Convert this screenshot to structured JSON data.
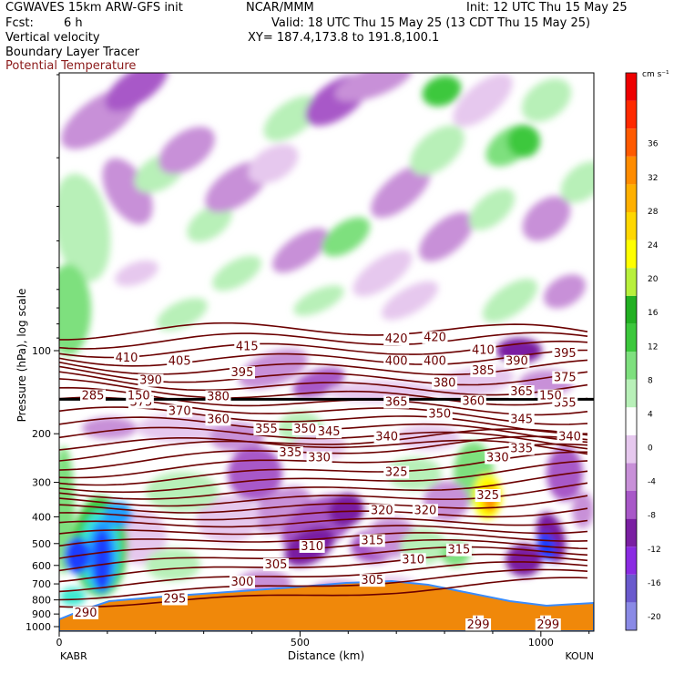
{
  "header": {
    "model": "CGWAVES 15km ARW-GFS init",
    "org": "NCAR/MMM",
    "init": "Init: 12 UTC Thu 15 May 25",
    "fcst_label": "Fcst:",
    "fcst_value": "6 h",
    "valid": "Valid: 18 UTC Thu 15 May 25 (13 CDT Thu 15 May 25)",
    "field1": "Vertical velocity",
    "xy": "XY= 187.4,173.8 to 191.8,100.1",
    "field2": "Boundary Layer Tracer",
    "field3": "Potential Temperature"
  },
  "colors": {
    "theta_contour": "#6b0000",
    "theta_label": "#8b1a1a",
    "terrain": "#f0880a",
    "tracer": "#000000"
  },
  "chart_data": {
    "type": "heatmap",
    "title": "",
    "xlabel": "Distance (km)",
    "ylabel": "Pressure (hPa), log scale",
    "xlim": [
      0,
      1110
    ],
    "ylim": [
      1000,
      10
    ],
    "y_scale": "log",
    "x_ticks": [
      0,
      500,
      1000
    ],
    "y_ticks": [
      100,
      200,
      300,
      400,
      500,
      600,
      700,
      800,
      900,
      1000
    ],
    "x_end_labels": {
      "left": "KABR",
      "right": "KOUN"
    },
    "colorbar": {
      "unit": "cm s⁻¹",
      "levels": [
        -20,
        -16,
        -12,
        -8,
        -4,
        0,
        4,
        8,
        12,
        16,
        20,
        24,
        28,
        32,
        36
      ],
      "colors": [
        "#8a8ae6",
        "#6a5acd",
        "#8a2be2",
        "#7a1fa2",
        "#a858c8",
        "#c890d8",
        "#e6c8ee",
        "#ffffff",
        "#b8f0b8",
        "#7ee07e",
        "#3cc83c",
        "#22b022",
        "#b8f03c",
        "#ffff00",
        "#ffd700",
        "#ffb000",
        "#ff8c00",
        "#ff5a00",
        "#ff2a00",
        "#ee0000"
      ]
    },
    "theta_labels": [
      {
        "x": 55,
        "p": 905,
        "text": "290"
      },
      {
        "x": 240,
        "p": 805,
        "text": "295"
      },
      {
        "x": 380,
        "p": 700,
        "text": "300"
      },
      {
        "x": 450,
        "p": 605,
        "text": "305"
      },
      {
        "x": 650,
        "p": 690,
        "text": "305"
      },
      {
        "x": 525,
        "p": 520,
        "text": "310"
      },
      {
        "x": 735,
        "p": 580,
        "text": "310"
      },
      {
        "x": 650,
        "p": 495,
        "text": "315"
      },
      {
        "x": 830,
        "p": 535,
        "text": "315"
      },
      {
        "x": 670,
        "p": 385,
        "text": "320"
      },
      {
        "x": 760,
        "p": 385,
        "text": "320"
      },
      {
        "x": 890,
        "p": 340,
        "text": "325"
      },
      {
        "x": 700,
        "p": 280,
        "text": "325"
      },
      {
        "x": 540,
        "p": 248,
        "text": "330"
      },
      {
        "x": 910,
        "p": 248,
        "text": "330"
      },
      {
        "x": 480,
        "p": 238,
        "text": "335"
      },
      {
        "x": 960,
        "p": 230,
        "text": "335"
      },
      {
        "x": 680,
        "p": 208,
        "text": "340"
      },
      {
        "x": 1060,
        "p": 208,
        "text": "340"
      },
      {
        "x": 560,
        "p": 200,
        "text": "345"
      },
      {
        "x": 960,
        "p": 180,
        "text": "345"
      },
      {
        "x": 510,
        "p": 195,
        "text": "350"
      },
      {
        "x": 790,
        "p": 172,
        "text": "350"
      },
      {
        "x": 430,
        "p": 195,
        "text": "355"
      },
      {
        "x": 1050,
        "p": 157,
        "text": "355"
      },
      {
        "x": 330,
        "p": 180,
        "text": "360"
      },
      {
        "x": 860,
        "p": 155,
        "text": "360"
      },
      {
        "x": 700,
        "p": 156,
        "text": "365"
      },
      {
        "x": 960,
        "p": 143,
        "text": "365"
      },
      {
        "x": 250,
        "p": 168,
        "text": "370"
      },
      {
        "x": 170,
        "p": 156,
        "text": "375"
      },
      {
        "x": 1050,
        "p": 127,
        "text": "375"
      },
      {
        "x": 330,
        "p": 149,
        "text": "380"
      },
      {
        "x": 800,
        "p": 133,
        "text": "380"
      },
      {
        "x": 880,
        "p": 120,
        "text": "385"
      },
      {
        "x": 190,
        "p": 130,
        "text": "390"
      },
      {
        "x": 950,
        "p": 111,
        "text": "390"
      },
      {
        "x": 380,
        "p": 122,
        "text": "395"
      },
      {
        "x": 1050,
        "p": 104,
        "text": "395"
      },
      {
        "x": 700,
        "p": 111,
        "text": "400"
      },
      {
        "x": 780,
        "p": 111,
        "text": "400"
      },
      {
        "x": 250,
        "p": 111,
        "text": "405"
      },
      {
        "x": 140,
        "p": 108,
        "text": "410"
      },
      {
        "x": 880,
        "p": 101,
        "text": "410"
      },
      {
        "x": 390,
        "p": 98,
        "text": "415"
      },
      {
        "x": 700,
        "p": 92,
        "text": "420"
      },
      {
        "x": 780,
        "p": 91,
        "text": "420"
      }
    ],
    "tropopause_labels": [
      {
        "x": 70,
        "p": 148,
        "text": "285"
      },
      {
        "x": 165,
        "p": 148,
        "text": "150"
      },
      {
        "x": 1020,
        "p": 148,
        "text": "150"
      }
    ],
    "surface_labels": [
      {
        "x": 870,
        "p": 975,
        "text": "L"
      },
      {
        "x": 1010,
        "p": 975,
        "text": "L"
      },
      {
        "x": 870,
        "p": 1000,
        "text": "299"
      },
      {
        "x": 1015,
        "p": 1000,
        "text": "299"
      }
    ]
  }
}
